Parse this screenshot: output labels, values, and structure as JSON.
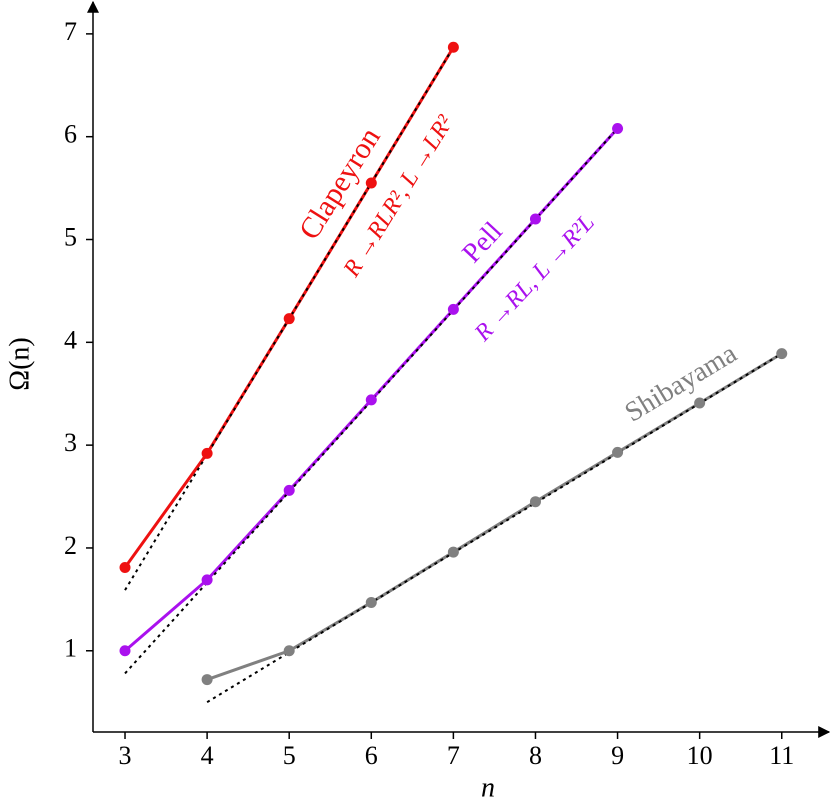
{
  "chart_data": {
    "type": "line",
    "xlabel": "n",
    "ylabel": "Ω(n)",
    "xlim": [
      2.61,
      11.6
    ],
    "ylim": [
      0.21,
      7.31
    ],
    "xticks": [
      3,
      4,
      5,
      6,
      7,
      8,
      9,
      10,
      11
    ],
    "yticks": [
      1,
      2,
      3,
      4,
      5,
      6,
      7
    ],
    "series": [
      {
        "name": "Clapeyron",
        "color": "#ee1111",
        "x": [
          3,
          4,
          5,
          6,
          7
        ],
        "values": [
          1.81,
          2.92,
          4.23,
          5.55,
          6.87
        ]
      },
      {
        "name": "Pell",
        "color": "#aa11ee",
        "x": [
          3,
          4,
          5,
          6,
          7,
          8,
          9
        ],
        "values": [
          1.0,
          1.69,
          2.56,
          3.44,
          4.32,
          5.2,
          6.08
        ]
      },
      {
        "name": "Shibayama",
        "color": "#808080",
        "x": [
          4,
          5,
          6,
          7,
          8,
          9,
          10,
          11
        ],
        "values": [
          0.72,
          1.0,
          1.47,
          1.96,
          2.45,
          2.93,
          3.41,
          3.89
        ]
      }
    ],
    "fits": [
      {
        "x": [
          3,
          7
        ],
        "values": [
          1.59,
          6.87
        ]
      },
      {
        "x": [
          3,
          9
        ],
        "values": [
          0.78,
          6.08
        ]
      },
      {
        "x": [
          4,
          11
        ],
        "values": [
          0.5,
          3.89
        ]
      }
    ],
    "annotations": [
      "R →RLR², L →LR²",
      "R →RL, L →R²L"
    ]
  }
}
